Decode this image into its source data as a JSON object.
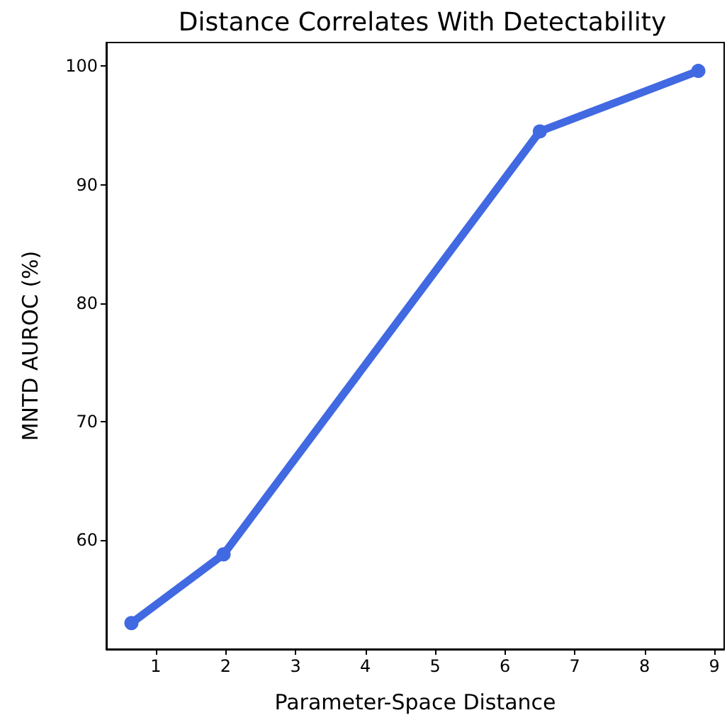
{
  "chart_data": {
    "type": "line",
    "title": "Distance Correlates With Detectability",
    "xlabel": "Parameter-Space Distance",
    "ylabel": "MNTD AUROC (%)",
    "x": [
      0.65,
      1.97,
      6.5,
      8.77
    ],
    "series": [
      {
        "color": "#4169e1",
        "values": [
          53.0,
          58.8,
          94.5,
          99.6
        ]
      }
    ],
    "xlim": [
      0.29,
      9.14
    ],
    "xticks": [
      1,
      2,
      3,
      4,
      5,
      6,
      7,
      8,
      9
    ],
    "ylim": [
      50.8,
      102.0
    ],
    "yticks": [
      60,
      70,
      80,
      90,
      100
    ],
    "grid": false,
    "marker": "circle",
    "line_style": "solid"
  }
}
